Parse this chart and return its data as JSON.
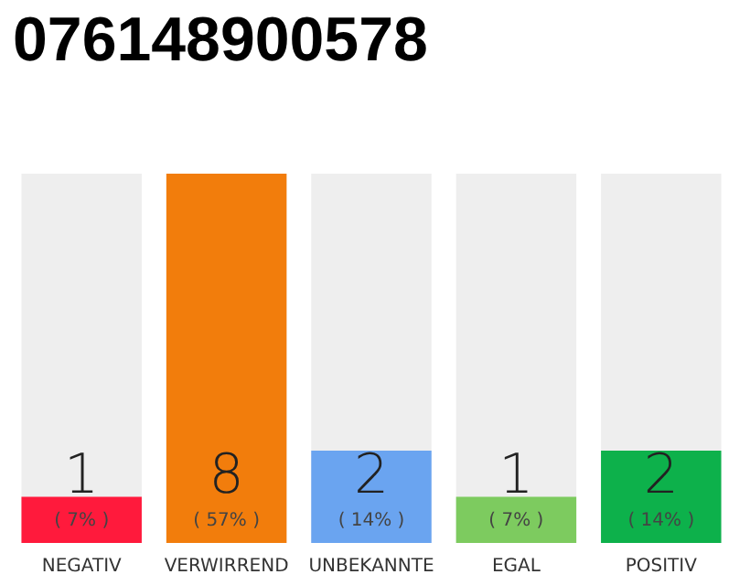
{
  "chart_data": {
    "type": "bar",
    "title": "076148900578",
    "categories": [
      "NEGATIV",
      "VERWIRREND",
      "UNBEKANNTE",
      "EGAL",
      "POSITIV"
    ],
    "values": [
      1,
      8,
      2,
      1,
      2
    ],
    "colors": [
      "#ff1a3c",
      "#f27d0c",
      "#6aa4f0",
      "#7dcb5f",
      "#0db14b"
    ],
    "value_labels": [
      "1\n( 7% )",
      "8\n( 57% )",
      "2\n( 14% )",
      "1\n( 7% )",
      "2\n( 14% )"
    ],
    "ylim": [
      0,
      8
    ],
    "tick_labels": "x",
    "grid": false
  }
}
